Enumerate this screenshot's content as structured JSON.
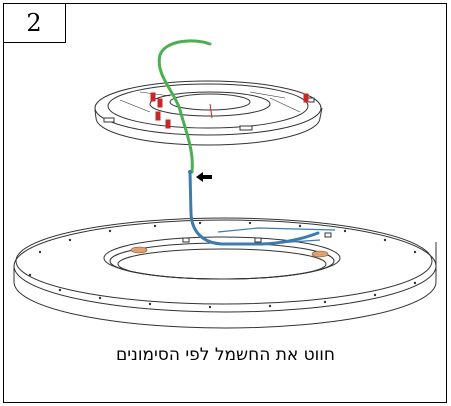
{
  "step": {
    "number": "2"
  },
  "instruction": {
    "text": "חווט את החשמל לפי הסימונים"
  },
  "colors": {
    "live_wire": "#4caf50",
    "neutral_wire": "#3b7bb0",
    "markers": "#c62828",
    "pads": "#e0a070",
    "outline": "#333333"
  },
  "icons": [
    "direction-arrow-icon"
  ]
}
